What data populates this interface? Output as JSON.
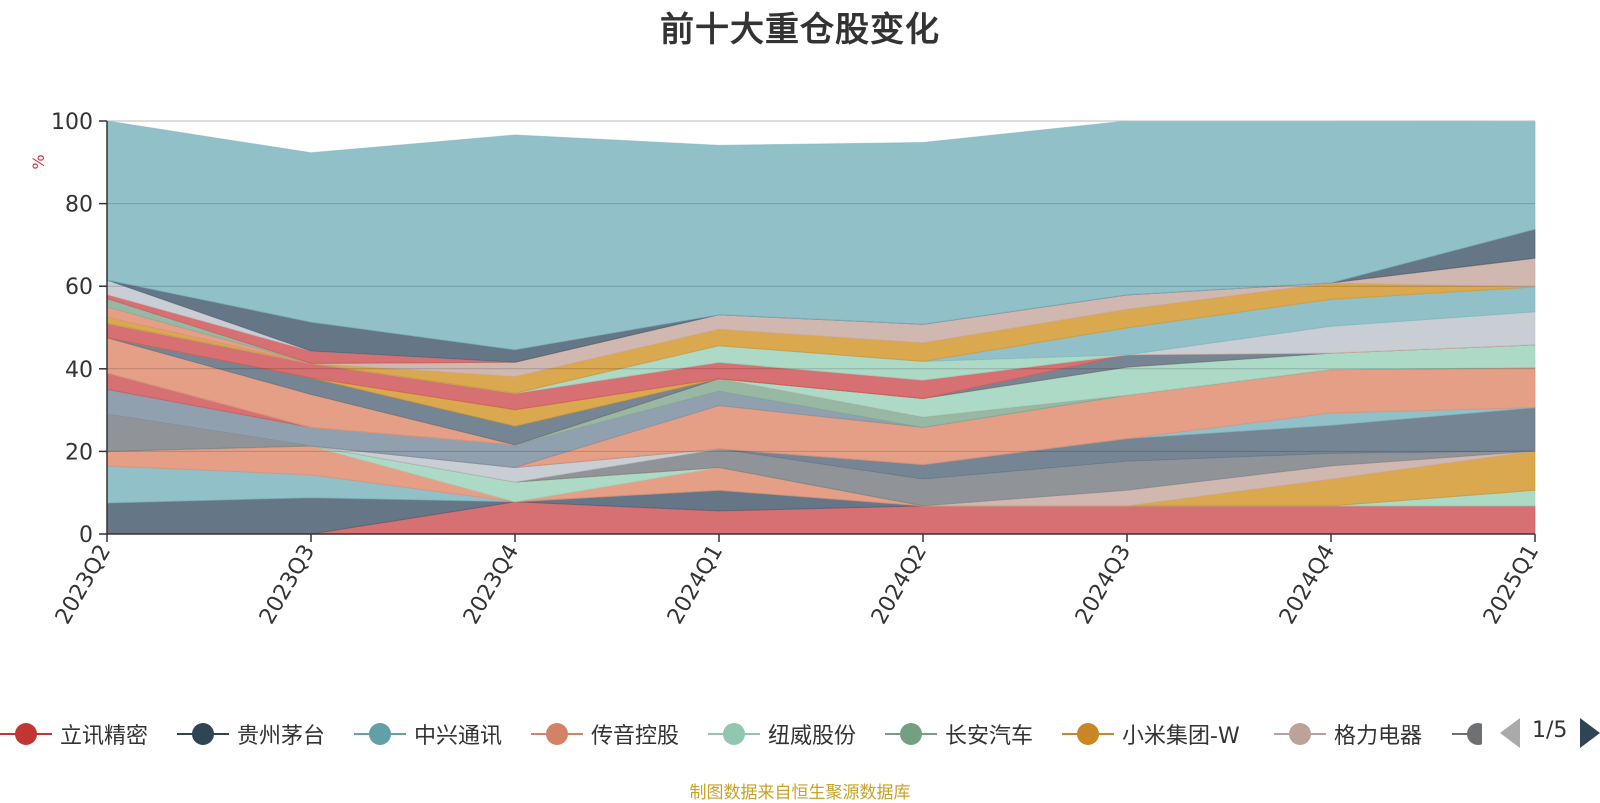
{
  "chart_data": {
    "type": "area",
    "title": "前十大重仓股变化",
    "ylabel": "%",
    "ylim": [
      0,
      100
    ],
    "yticks": [
      0,
      20,
      40,
      60,
      80,
      100
    ],
    "categories": [
      "2023Q2",
      "2023Q3",
      "2023Q4",
      "2024Q1",
      "2024Q2",
      "2024Q3",
      "2024Q4",
      "2025Q1"
    ],
    "stacked": true,
    "grid": true,
    "legend_position": "bottom",
    "series": [
      {
        "name": "立讯精密",
        "color": "#d0575a",
        "values": [
          0,
          0,
          7.8,
          5.6,
          6.8,
          6.8,
          6.8,
          6.8
        ]
      },
      {
        "name": "贵州茅台",
        "color": "#4a5f72",
        "values": [
          7.5,
          8.8,
          0,
          5.0,
          0,
          0,
          0,
          0
        ]
      },
      {
        "name": "中兴通讯",
        "color": "#7eb5bf",
        "values": [
          9.0,
          5.5,
          0,
          0,
          0,
          0,
          0,
          0
        ]
      },
      {
        "name": "传音控股",
        "color": "#e28e72",
        "values": [
          3.5,
          7.0,
          0,
          5.5,
          0,
          0,
          0,
          0
        ]
      },
      {
        "name": "纽威股份",
        "color": "#9fd4bd",
        "values": [
          0,
          0,
          4.8,
          0,
          0,
          0,
          0,
          3.8
        ]
      },
      {
        "name": "长安汽车",
        "color": "#86ab94",
        "values": [
          0,
          0,
          0,
          0,
          0,
          0,
          0,
          0
        ]
      },
      {
        "name": "小米集团-W",
        "color": "#d4992f",
        "values": [
          0,
          0,
          0,
          0,
          0,
          0,
          6.5,
          9.5
        ]
      },
      {
        "name": "格力电器",
        "color": "#c8aba3",
        "values": [
          0,
          0,
          0,
          0,
          0,
          3.8,
          3.2,
          0
        ]
      }
    ],
    "extra_layers": [
      {
        "color": "#7c8187",
        "values": [
          9.0,
          0,
          0,
          4.5,
          6.5,
          7.0,
          3.0,
          0
        ]
      },
      {
        "color": "#c0c6cc",
        "values": [
          0,
          0,
          3.5,
          0,
          0,
          0,
          0,
          0
        ]
      },
      {
        "color": "#5e7080",
        "values": [
          0,
          0,
          0,
          0,
          3.5,
          5.5,
          6.8,
          10.5
        ]
      },
      {
        "color": "#7eb5bf",
        "values": [
          0,
          0,
          0,
          0,
          0,
          0,
          3.0,
          0
        ]
      },
      {
        "color": "#e28e72",
        "values": [
          0,
          0,
          0,
          10.5,
          9.0,
          10.5,
          10.5,
          9.7
        ]
      },
      {
        "color": "#7c8fa0",
        "values": [
          6.0,
          4.5,
          5.5,
          3.5,
          0,
          0,
          0,
          0
        ]
      },
      {
        "color": "#86ab94",
        "values": [
          0,
          0,
          0,
          3.0,
          2.5,
          0,
          0,
          0
        ]
      },
      {
        "color": "#d0575a",
        "values": [
          4.0,
          0,
          0,
          0,
          0,
          0,
          0,
          0
        ]
      },
      {
        "color": "#9fd4bd",
        "values": [
          0,
          0,
          0,
          0,
          4.5,
          6.8,
          4.0,
          5.5
        ]
      },
      {
        "color": "#e28e72",
        "values": [
          8.5,
          8.0,
          0,
          0,
          0,
          0,
          0,
          0
        ]
      },
      {
        "color": "#5e7080",
        "values": [
          0,
          4.0,
          4.5,
          0,
          0,
          3.0,
          0,
          0
        ]
      },
      {
        "color": "#d4992f",
        "values": [
          0,
          0,
          4.0,
          0,
          0,
          0,
          0,
          0
        ]
      },
      {
        "color": "#d0575a",
        "values": [
          3.5,
          3.5,
          4.0,
          4.0,
          4.5,
          0,
          0,
          0
        ]
      },
      {
        "color": "#c0c6cc",
        "values": [
          0,
          0,
          0,
          0,
          0,
          0,
          6.5,
          8.0
        ]
      },
      {
        "color": "#9fd4bd",
        "values": [
          0,
          0,
          0,
          4.0,
          4.5,
          0,
          0,
          0
        ]
      },
      {
        "color": "#7eb5bf",
        "values": [
          0,
          0,
          0,
          0,
          0,
          6.5,
          6.5,
          6.0
        ]
      },
      {
        "color": "#d4992f",
        "values": [
          1.5,
          0,
          4.0,
          4.0,
          4.5,
          4.5,
          4.0,
          0
        ]
      },
      {
        "color": "#c8aba3",
        "values": [
          0,
          0,
          3.5,
          3.5,
          4.5,
          3.5,
          0,
          7.0
        ]
      },
      {
        "color": "#e28e72",
        "values": [
          2.5,
          0,
          0,
          0,
          0,
          0,
          0,
          0
        ]
      },
      {
        "color": "#86ab94",
        "values": [
          2.0,
          0,
          0,
          0,
          0,
          0,
          0,
          0
        ]
      },
      {
        "color": "#d0575a",
        "values": [
          1.0,
          3.0,
          0,
          0,
          0,
          0,
          0,
          0
        ]
      },
      {
        "color": "#c0c6cc",
        "values": [
          3.5,
          0,
          0,
          0,
          0,
          0,
          0,
          0
        ]
      },
      {
        "color": "#4a5f72",
        "values": [
          0,
          7.0,
          3.0,
          0,
          0,
          0,
          0,
          7.0
        ]
      },
      {
        "color": "#7eb5bf",
        "values": [
          40.0,
          41.0,
          52.0,
          41.0,
          44.0,
          43.0,
          43.0,
          26.0
        ]
      }
    ]
  },
  "legend": {
    "items": [
      {
        "name": "立讯精密",
        "color": "#c23531"
      },
      {
        "name": "贵州茅台",
        "color": "#2f4554"
      },
      {
        "name": "中兴通讯",
        "color": "#61a0a8"
      },
      {
        "name": "传音控股",
        "color": "#d48265"
      },
      {
        "name": "纽威股份",
        "color": "#91c7ae"
      },
      {
        "name": "长安汽车",
        "color": "#749f83"
      },
      {
        "name": "小米集团-W",
        "color": "#ca8622"
      },
      {
        "name": "格力电器",
        "color": "#bda29a"
      }
    ],
    "partial_color": "#6e7074",
    "page_label": "1/5"
  },
  "source_note": "制图数据来自恒生聚源数据库"
}
